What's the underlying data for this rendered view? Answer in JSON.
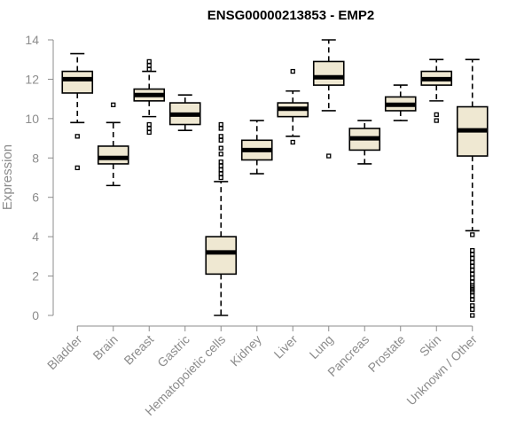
{
  "chart_data": {
    "type": "boxplot",
    "title": "ENSG00000213853 - EMP2",
    "xlabel": "",
    "ylabel": "Expression",
    "ylim": [
      0,
      14
    ],
    "yticks": [
      0,
      2,
      4,
      6,
      8,
      10,
      12,
      14
    ],
    "grid": false,
    "colors": {
      "box_fill": "#efe8d2",
      "stroke": "#000000",
      "axis": "#8c8c8c"
    },
    "categories": [
      "Bladder",
      "Brain",
      "Breast",
      "Gastric",
      "Hematopoietic cells",
      "Kidney",
      "Liver",
      "Lung",
      "Pancreas",
      "Prostate",
      "Skin",
      "Unknown / Other"
    ],
    "boxes": [
      {
        "min": 9.8,
        "q1": 11.3,
        "median": 12.0,
        "q3": 12.4,
        "max": 13.3,
        "outliers": [
          9.1,
          7.5
        ]
      },
      {
        "min": 6.6,
        "q1": 7.7,
        "median": 8.0,
        "q3": 8.6,
        "max": 9.8,
        "outliers": [
          10.7
        ]
      },
      {
        "min": 10.1,
        "q1": 10.9,
        "median": 11.2,
        "q3": 11.5,
        "max": 12.4,
        "outliers": [
          12.5,
          12.7,
          12.9,
          9.7,
          9.5,
          9.3
        ]
      },
      {
        "min": 9.4,
        "q1": 9.7,
        "median": 10.2,
        "q3": 10.8,
        "max": 11.2,
        "outliers": []
      },
      {
        "min": 0.0,
        "q1": 2.1,
        "median": 3.2,
        "q3": 4.0,
        "max": 6.8,
        "outliers": [
          7.0,
          7.2,
          7.4,
          7.6,
          7.8,
          8.2,
          8.5,
          8.9,
          9.1,
          9.5,
          9.7
        ]
      },
      {
        "min": 7.2,
        "q1": 7.9,
        "median": 8.4,
        "q3": 8.9,
        "max": 9.9,
        "outliers": []
      },
      {
        "min": 9.1,
        "q1": 10.1,
        "median": 10.5,
        "q3": 10.8,
        "max": 11.4,
        "outliers": [
          12.4,
          8.8
        ]
      },
      {
        "min": 10.4,
        "q1": 11.7,
        "median": 12.1,
        "q3": 12.9,
        "max": 14.0,
        "outliers": [
          8.1
        ]
      },
      {
        "min": 7.7,
        "q1": 8.4,
        "median": 9.0,
        "q3": 9.5,
        "max": 9.9,
        "outliers": []
      },
      {
        "min": 9.9,
        "q1": 10.4,
        "median": 10.7,
        "q3": 11.1,
        "max": 11.7,
        "outliers": []
      },
      {
        "min": 10.9,
        "q1": 11.7,
        "median": 12.0,
        "q3": 12.4,
        "max": 13.0,
        "outliers": [
          10.2,
          9.9
        ]
      },
      {
        "min": 4.3,
        "q1": 8.1,
        "median": 9.4,
        "q3": 10.6,
        "max": 13.0,
        "outliers": [
          4.1,
          3.3,
          3.1,
          2.9,
          2.7,
          2.5,
          2.3,
          2.1,
          1.9,
          1.7,
          1.5,
          1.4,
          1.3,
          1.2,
          1.0,
          0.8,
          0.5,
          0.3,
          0.0
        ]
      }
    ]
  }
}
